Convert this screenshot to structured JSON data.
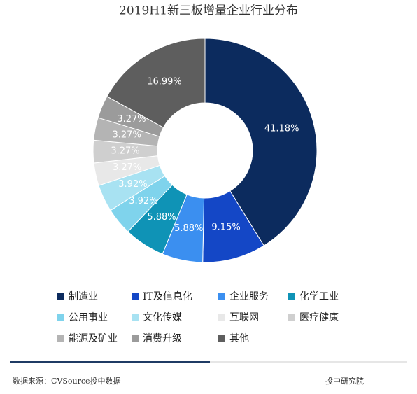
{
  "chart_data": {
    "type": "donut",
    "title": "2019H1新三板增量企业行业分布",
    "categories": [
      "制造业",
      "IT及信息化",
      "企业服务",
      "化学工业",
      "公用事业",
      "文化传媒",
      "互联网",
      "医疗健康",
      "能源及矿业",
      "消费升级",
      "其他"
    ],
    "values": [
      41.18,
      9.15,
      5.88,
      5.88,
      3.92,
      3.92,
      3.27,
      3.27,
      3.27,
      3.27,
      16.99
    ],
    "value_labels": [
      "41.18%",
      "9.15%",
      "5.88%",
      "5.88%",
      "3.92%",
      "3.92%",
      "3.27%",
      "3.27%",
      "3.27%",
      "3.27%",
      "16.99%"
    ],
    "colors": [
      "#0c2b5e",
      "#1447c6",
      "#3b8ff0",
      "#0f93b6",
      "#7fd3ec",
      "#a8e2f2",
      "#e8e8e8",
      "#cfcfcf",
      "#b4b4b4",
      "#9b9b9b",
      "#5e5e5e"
    ],
    "source": "数据来源：CVSource投中数据",
    "note": "投中研究院"
  }
}
